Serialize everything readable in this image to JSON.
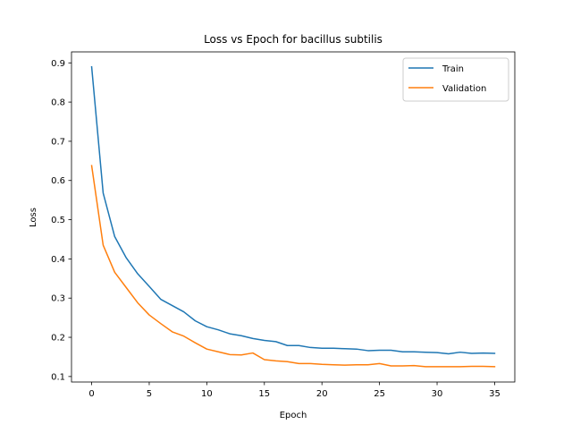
{
  "chart_data": {
    "type": "line",
    "title": "Loss vs Epoch for bacillus subtilis",
    "xlabel": "Epoch",
    "ylabel": "Loss",
    "xlim": [
      -1.75,
      36.75
    ],
    "ylim": [
      0.086,
      0.928
    ],
    "x_ticks": [
      0,
      5,
      10,
      15,
      20,
      25,
      30,
      35
    ],
    "y_ticks": [
      0.1,
      0.2,
      0.3,
      0.4,
      0.5,
      0.6,
      0.7,
      0.8,
      0.9
    ],
    "grid": false,
    "legend_position": "top-right",
    "x": [
      0,
      1,
      2,
      3,
      4,
      5,
      6,
      7,
      8,
      9,
      10,
      11,
      12,
      13,
      14,
      15,
      16,
      17,
      18,
      19,
      20,
      21,
      22,
      23,
      24,
      25,
      26,
      27,
      28,
      29,
      30,
      31,
      32,
      33,
      34,
      35
    ],
    "series": [
      {
        "name": "Train",
        "color": "#1f77b4",
        "values": [
          0.89,
          0.568,
          0.457,
          0.403,
          0.362,
          0.33,
          0.297,
          0.281,
          0.265,
          0.242,
          0.227,
          0.219,
          0.209,
          0.204,
          0.197,
          0.192,
          0.189,
          0.179,
          0.179,
          0.174,
          0.172,
          0.172,
          0.171,
          0.17,
          0.166,
          0.167,
          0.167,
          0.163,
          0.163,
          0.162,
          0.161,
          0.158,
          0.162,
          0.159,
          0.16,
          0.159
        ]
      },
      {
        "name": "Validation",
        "color": "#ff7f0e",
        "values": [
          0.638,
          0.435,
          0.366,
          0.327,
          0.288,
          0.257,
          0.235,
          0.214,
          0.203,
          0.186,
          0.17,
          0.163,
          0.156,
          0.155,
          0.16,
          0.143,
          0.14,
          0.138,
          0.133,
          0.133,
          0.131,
          0.13,
          0.129,
          0.13,
          0.13,
          0.133,
          0.127,
          0.127,
          0.128,
          0.125,
          0.125,
          0.125,
          0.125,
          0.126,
          0.126,
          0.125
        ]
      }
    ]
  }
}
